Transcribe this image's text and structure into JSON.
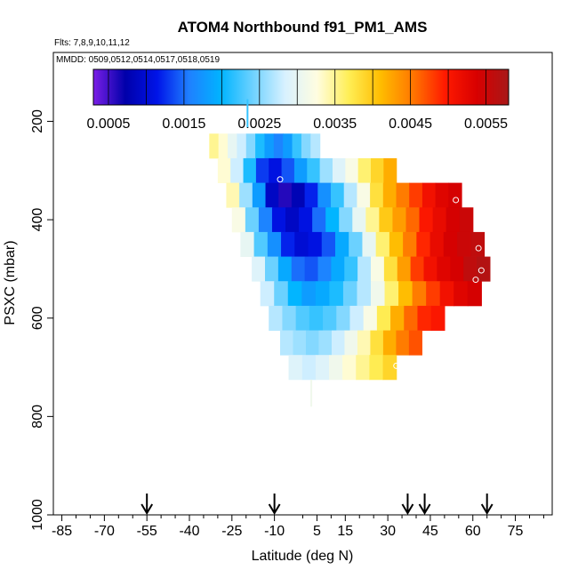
{
  "chart_data": {
    "type": "heatmap",
    "title": "ATOM4 Northbound f91_PM1_AMS",
    "flights_label": "Flts: 7,8,9,10,11,12",
    "dates_label": "MMDD: 0509,0512,0514,0517,0518,0519",
    "xlabel": "Latitude (deg N)",
    "ylabel": "PSXC (mbar)",
    "xlim": [
      -88,
      88
    ],
    "ylim": [
      1000,
      60
    ],
    "x_ticks": [
      -85,
      -70,
      -55,
      -40,
      -25,
      -10,
      5,
      15,
      30,
      45,
      60,
      75
    ],
    "x_tick_labels": [
      "-85",
      "-70",
      "-55",
      "-40",
      "-25",
      "-10",
      "5",
      "15",
      "30",
      "45",
      "60",
      "75"
    ],
    "x_minor_ticks": [
      -80,
      -75,
      -65,
      -60,
      -50,
      -45,
      -35,
      -30,
      -20,
      -15,
      0,
      10,
      20,
      25,
      35,
      40,
      50,
      55,
      65,
      70,
      80,
      85
    ],
    "y_ticks": [
      200,
      400,
      600,
      800,
      1000
    ],
    "y_tick_labels": [
      "200",
      "400",
      "600",
      "800",
      "1000"
    ],
    "colorbar": {
      "min": 0.0003,
      "max": 0.0058,
      "ticks": [
        0.0005,
        0.0015,
        0.0025,
        0.0035,
        0.0045,
        0.0055
      ],
      "tick_labels": [
        "0.0005",
        "0.0015",
        "0.0025",
        "0.0035",
        "0.0045",
        "0.0055"
      ],
      "divisions": [
        0.0005,
        0.001,
        0.0015,
        0.002,
        0.0025,
        0.003,
        0.0035,
        0.004,
        0.0045,
        0.005,
        0.0055
      ],
      "colors": [
        "#7b1fe6",
        "#0000aa",
        "#0014e8",
        "#1f80ff",
        "#00b4ff",
        "#6fd2ff",
        "#d8f1ff",
        "#fffde0",
        "#ffee55",
        "#ffbc00",
        "#ff7700",
        "#ff1a00",
        "#d80000",
        "#a81818"
      ]
    },
    "rows": [
      {
        "p": 250,
        "lat_start": -33,
        "lat_end": 6,
        "values": [
          0.0035,
          0.0033,
          0.003,
          0.0028,
          0.0025,
          0.0021,
          0.0018,
          0.0016,
          0.0018,
          0.0022,
          0.0025,
          0.0027
        ]
      },
      {
        "p": 300,
        "lat_start": -30,
        "lat_end": 33,
        "values": [
          0.0033,
          0.0028,
          0.0021,
          0.0013,
          0.0011,
          0.0014,
          0.0018,
          0.0022,
          0.0026,
          0.0029,
          0.0032,
          0.0036,
          0.0039,
          0.0042
        ]
      },
      {
        "p": 350,
        "lat_start": -27,
        "lat_end": 56,
        "values": [
          0.0034,
          0.0026,
          0.0018,
          0.0009,
          0.0006,
          0.0008,
          0.0012,
          0.0017,
          0.0022,
          0.0027,
          0.0032,
          0.0038,
          0.0042,
          0.0045,
          0.0048,
          0.0051,
          0.0053,
          0.0054
        ]
      },
      {
        "p": 400,
        "lat_start": -25,
        "lat_end": 60,
        "values": [
          0.0032,
          0.0024,
          0.0016,
          0.0011,
          0.0009,
          0.0011,
          0.0015,
          0.002,
          0.0025,
          0.003,
          0.0035,
          0.004,
          0.0043,
          0.0046,
          0.005,
          0.0052,
          0.0054,
          0.0055
        ]
      },
      {
        "p": 450,
        "lat_start": -22,
        "lat_end": 64,
        "values": [
          0.003,
          0.0023,
          0.0017,
          0.0012,
          0.001,
          0.0011,
          0.0014,
          0.0019,
          0.0024,
          0.003,
          0.0036,
          0.0041,
          0.0045,
          0.0049,
          0.0052,
          0.0054,
          0.0055,
          0.0056
        ]
      },
      {
        "p": 500,
        "lat_start": -18,
        "lat_end": 66,
        "values": [
          0.0029,
          0.0024,
          0.0019,
          0.0015,
          0.0014,
          0.0016,
          0.0019,
          0.0022,
          0.0027,
          0.0032,
          0.0038,
          0.0043,
          0.0048,
          0.0051,
          0.0053,
          0.0054,
          0.0056,
          0.0057
        ]
      },
      {
        "p": 550,
        "lat_start": -15,
        "lat_end": 63,
        "values": [
          0.0028,
          0.0024,
          0.002,
          0.0018,
          0.0019,
          0.0021,
          0.0024,
          0.0027,
          0.0031,
          0.0036,
          0.0041,
          0.0045,
          0.0048,
          0.0051,
          0.0053,
          0.0054
        ]
      },
      {
        "p": 600,
        "lat_start": -12,
        "lat_end": 50,
        "values": [
          0.0027,
          0.0025,
          0.0023,
          0.0022,
          0.0023,
          0.0025,
          0.0028,
          0.0032,
          0.0037,
          0.0042,
          0.0046,
          0.0049,
          0.005
        ]
      },
      {
        "p": 650,
        "lat_start": -8,
        "lat_end": 42,
        "values": [
          0.0027,
          0.0026,
          0.0025,
          0.0026,
          0.0028,
          0.0031,
          0.0034,
          0.0038,
          0.0042,
          0.0045,
          0.0047
        ]
      },
      {
        "p": 700,
        "lat_start": -5,
        "lat_end": 33,
        "values": [
          0.0029,
          0.0028,
          0.0029,
          0.0031,
          0.0033,
          0.0035,
          0.0037,
          0.0039
        ]
      }
    ],
    "spikes": [
      {
        "lat": -19.5,
        "p_top": 155,
        "p_bottom": 212,
        "value": 0.0022
      },
      {
        "lat": 3,
        "p_top": 725,
        "p_bottom": 780,
        "value": 0.0031
      }
    ],
    "markers": [
      {
        "lat": -8,
        "p": 318
      },
      {
        "lat": 54,
        "p": 360
      },
      {
        "lat": 62,
        "p": 458
      },
      {
        "lat": 63,
        "p": 503
      },
      {
        "lat": 61,
        "p": 522
      },
      {
        "lat": 33,
        "p": 697
      }
    ],
    "arrows_lat": [
      -55,
      -10,
      37,
      43,
      65
    ]
  }
}
